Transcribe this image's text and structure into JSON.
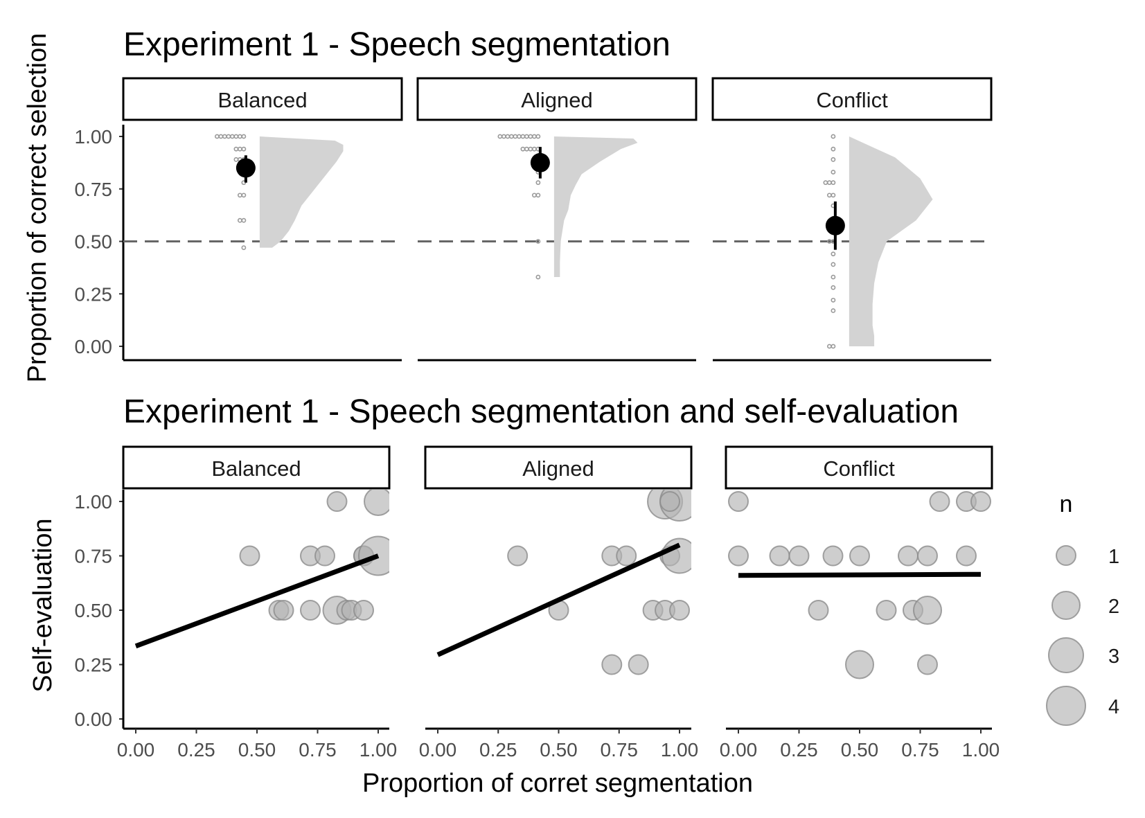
{
  "chart_data": [
    {
      "type": "raincloud",
      "title": "Experiment 1 - Speech segmentation",
      "ylabel": "Proportion of correct selection",
      "xlabel": "",
      "ylim": [
        0,
        1
      ],
      "yticks": [
        "0.00",
        "0.25",
        "0.50",
        "0.75",
        "1.00"
      ],
      "reference_line_y": 0.5,
      "panels": [
        {
          "label": "Balanced",
          "mean": 0.85,
          "ci": [
            0.78,
            0.91
          ],
          "points": [
            1,
            1,
            1,
            1,
            1,
            1,
            1,
            1,
            0.94,
            0.94,
            0.94,
            0.89,
            0.89,
            0.89,
            0.83,
            0.83,
            0.78,
            0.72,
            0.72,
            0.6,
            0.6,
            0.47
          ],
          "density": [
            [
              0.47,
              0.15
            ],
            [
              0.5,
              0.25
            ],
            [
              0.55,
              0.35
            ],
            [
              0.6,
              0.42
            ],
            [
              0.67,
              0.5
            ],
            [
              0.72,
              0.6
            ],
            [
              0.78,
              0.72
            ],
            [
              0.83,
              0.82
            ],
            [
              0.88,
              0.92
            ],
            [
              0.93,
              1.0
            ],
            [
              0.96,
              1.0
            ],
            [
              0.98,
              0.9
            ],
            [
              1.0,
              0.0
            ]
          ]
        },
        {
          "label": "Aligned",
          "mean": 0.875,
          "ci": [
            0.8,
            0.95
          ],
          "points": [
            1,
            1,
            1,
            1,
            1,
            1,
            1,
            1,
            1,
            1,
            1,
            0.94,
            0.94,
            0.94,
            0.94,
            0.94,
            0.89,
            0.83,
            0.78,
            0.72,
            0.72,
            0.5,
            0.33
          ],
          "density": [
            [
              0.33,
              0.07
            ],
            [
              0.4,
              0.07
            ],
            [
              0.5,
              0.08
            ],
            [
              0.55,
              0.1
            ],
            [
              0.6,
              0.12
            ],
            [
              0.65,
              0.17
            ],
            [
              0.72,
              0.2
            ],
            [
              0.77,
              0.26
            ],
            [
              0.82,
              0.33
            ],
            [
              0.88,
              0.55
            ],
            [
              0.94,
              0.8
            ],
            [
              0.97,
              1.0
            ],
            [
              0.99,
              0.95
            ],
            [
              1.0,
              0.0
            ]
          ]
        },
        {
          "label": "Conflict",
          "mean": 0.575,
          "ci": [
            0.46,
            0.69
          ],
          "points": [
            1,
            0.94,
            0.89,
            0.83,
            0.78,
            0.78,
            0.78,
            0.72,
            0.72,
            0.67,
            0.61,
            0.56,
            0.5,
            0.5,
            0.44,
            0.39,
            0.33,
            0.28,
            0.22,
            0.17,
            0,
            0
          ],
          "density": [
            [
              0,
              0.3
            ],
            [
              0.05,
              0.3
            ],
            [
              0.1,
              0.28
            ],
            [
              0.2,
              0.28
            ],
            [
              0.3,
              0.3
            ],
            [
              0.4,
              0.35
            ],
            [
              0.5,
              0.45
            ],
            [
              0.6,
              0.8
            ],
            [
              0.7,
              1.0
            ],
            [
              0.8,
              0.85
            ],
            [
              0.9,
              0.55
            ],
            [
              1.0,
              0.0
            ]
          ]
        }
      ]
    },
    {
      "type": "scatter",
      "title": "Experiment 1 - Speech segmentation and self-evaluation",
      "xlabel": "Proportion of corret segmentation",
      "ylabel": "Self-evaluation",
      "xlim": [
        0,
        1
      ],
      "ylim": [
        0,
        1
      ],
      "xticks": [
        "0.00",
        "0.25",
        "0.50",
        "0.75",
        "1.00"
      ],
      "yticks": [
        "0.00",
        "0.25",
        "0.50",
        "0.75",
        "1.00"
      ],
      "legend": {
        "title": "n",
        "placement": "right",
        "entries": [
          "1",
          "2",
          "3",
          "4"
        ]
      },
      "panels": [
        {
          "label": "Balanced",
          "fit": [
            [
              0,
              0.335
            ],
            [
              1,
              0.75
            ]
          ],
          "points": [
            {
              "x": 0.83,
              "y": 1,
              "n": 1
            },
            {
              "x": 1,
              "y": 1,
              "n": 2
            },
            {
              "x": 0.47,
              "y": 0.75,
              "n": 1
            },
            {
              "x": 0.72,
              "y": 0.75,
              "n": 1
            },
            {
              "x": 0.78,
              "y": 0.75,
              "n": 1
            },
            {
              "x": 0.94,
              "y": 0.75,
              "n": 1
            },
            {
              "x": 0.94,
              "y": 0.75,
              "n": 1
            },
            {
              "x": 1,
              "y": 0.75,
              "n": 4
            },
            {
              "x": 0.59,
              "y": 0.5,
              "n": 1
            },
            {
              "x": 0.61,
              "y": 0.5,
              "n": 1
            },
            {
              "x": 0.72,
              "y": 0.5,
              "n": 1
            },
            {
              "x": 0.83,
              "y": 0.5,
              "n": 2
            },
            {
              "x": 0.87,
              "y": 0.5,
              "n": 1
            },
            {
              "x": 0.89,
              "y": 0.5,
              "n": 1
            },
            {
              "x": 0.94,
              "y": 0.5,
              "n": 1
            }
          ]
        },
        {
          "label": "Aligned",
          "fit": [
            [
              0,
              0.295
            ],
            [
              1,
              0.8
            ]
          ],
          "points": [
            {
              "x": 0.94,
              "y": 1,
              "n": 3
            },
            {
              "x": 1,
              "y": 1,
              "n": 4
            },
            {
              "x": 0.96,
              "y": 1,
              "n": 1
            },
            {
              "x": 0.33,
              "y": 0.75,
              "n": 1
            },
            {
              "x": 0.72,
              "y": 0.75,
              "n": 1
            },
            {
              "x": 0.78,
              "y": 0.75,
              "n": 1
            },
            {
              "x": 0.96,
              "y": 0.75,
              "n": 1
            },
            {
              "x": 1,
              "y": 0.75,
              "n": 3
            },
            {
              "x": 0.5,
              "y": 0.5,
              "n": 1
            },
            {
              "x": 0.89,
              "y": 0.5,
              "n": 1
            },
            {
              "x": 0.94,
              "y": 0.5,
              "n": 1
            },
            {
              "x": 1,
              "y": 0.5,
              "n": 1
            },
            {
              "x": 0.72,
              "y": 0.25,
              "n": 1
            },
            {
              "x": 0.83,
              "y": 0.25,
              "n": 1
            }
          ]
        },
        {
          "label": "Conflict",
          "fit": [
            [
              0,
              0.66
            ],
            [
              1,
              0.665
            ]
          ],
          "points": [
            {
              "x": 0,
              "y": 1,
              "n": 1
            },
            {
              "x": 0.83,
              "y": 1,
              "n": 1
            },
            {
              "x": 0.94,
              "y": 1,
              "n": 1
            },
            {
              "x": 1,
              "y": 1,
              "n": 1
            },
            {
              "x": 0,
              "y": 0.75,
              "n": 1
            },
            {
              "x": 0.17,
              "y": 0.75,
              "n": 1
            },
            {
              "x": 0.25,
              "y": 0.75,
              "n": 1
            },
            {
              "x": 0.39,
              "y": 0.75,
              "n": 1
            },
            {
              "x": 0.5,
              "y": 0.75,
              "n": 1
            },
            {
              "x": 0.7,
              "y": 0.75,
              "n": 1
            },
            {
              "x": 0.78,
              "y": 0.75,
              "n": 1
            },
            {
              "x": 0.94,
              "y": 0.75,
              "n": 1
            },
            {
              "x": 0.33,
              "y": 0.5,
              "n": 1
            },
            {
              "x": 0.61,
              "y": 0.5,
              "n": 1
            },
            {
              "x": 0.72,
              "y": 0.5,
              "n": 1
            },
            {
              "x": 0.78,
              "y": 0.5,
              "n": 2
            },
            {
              "x": 0.5,
              "y": 0.25,
              "n": 2
            },
            {
              "x": 0.78,
              "y": 0.25,
              "n": 1
            }
          ]
        }
      ]
    }
  ],
  "colors": {
    "point_fill": "#b3b3b3",
    "point_stroke": "#8c8c8c",
    "cloud_fill": "#d3d3d3",
    "dot_small": "#999999",
    "mean_point": "#000000",
    "fit_line": "#000000",
    "ref_line": "#666666"
  }
}
